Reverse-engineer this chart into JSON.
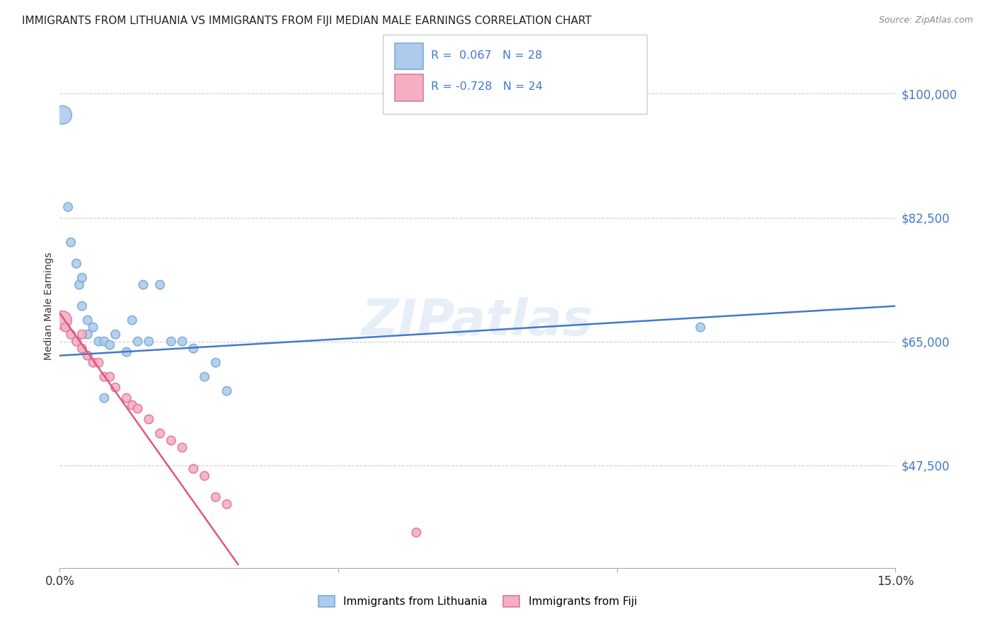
{
  "title": "IMMIGRANTS FROM LITHUANIA VS IMMIGRANTS FROM FIJI MEDIAN MALE EARNINGS CORRELATION CHART",
  "source": "Source: ZipAtlas.com",
  "ylabel": "Median Male Earnings",
  "xlim": [
    0.0,
    0.15
  ],
  "ylim": [
    33000,
    107000
  ],
  "yticks": [
    47500,
    65000,
    82500,
    100000
  ],
  "xticks": [
    0.0,
    0.05,
    0.1,
    0.15
  ],
  "xtick_labels": [
    "0.0%",
    "",
    "",
    "15.0%"
  ],
  "ytick_labels": [
    "$47,500",
    "$65,000",
    "$82,500",
    "$100,000"
  ],
  "watermark": "ZIPatlas",
  "lithuania_color": "#aecbee",
  "fiji_color": "#f4afc3",
  "lithuania_edge": "#7aaad4",
  "fiji_edge": "#e07898",
  "blue_line_color": "#4477cc",
  "pink_line_color": "#e05878",
  "legend_label_blue": "Immigrants from Lithuania",
  "legend_label_pink": "Immigrants from Fiji",
  "lithuania_x": [
    0.0015,
    0.002,
    0.003,
    0.0035,
    0.004,
    0.004,
    0.005,
    0.005,
    0.006,
    0.007,
    0.008,
    0.009,
    0.01,
    0.012,
    0.013,
    0.014,
    0.015,
    0.016,
    0.018,
    0.02,
    0.022,
    0.024,
    0.026,
    0.028,
    0.03,
    0.0005,
    0.115,
    0.008
  ],
  "lithuania_y": [
    84000,
    79000,
    76000,
    73000,
    70000,
    74000,
    68000,
    66000,
    67000,
    65000,
    65000,
    64500,
    66000,
    63500,
    68000,
    65000,
    73000,
    65000,
    73000,
    65000,
    65000,
    64000,
    60000,
    62000,
    58000,
    97000,
    67000,
    57000
  ],
  "lithuania_size": [
    80,
    80,
    80,
    80,
    80,
    80,
    80,
    80,
    80,
    80,
    80,
    80,
    80,
    80,
    80,
    80,
    80,
    80,
    80,
    80,
    80,
    80,
    80,
    80,
    80,
    350,
    80,
    80
  ],
  "fiji_x": [
    0.0005,
    0.001,
    0.002,
    0.003,
    0.004,
    0.004,
    0.005,
    0.006,
    0.007,
    0.008,
    0.009,
    0.01,
    0.012,
    0.013,
    0.014,
    0.016,
    0.018,
    0.02,
    0.022,
    0.024,
    0.026,
    0.028,
    0.03,
    0.064
  ],
  "fiji_y": [
    68000,
    67000,
    66000,
    65000,
    66000,
    64000,
    63000,
    62000,
    62000,
    60000,
    60000,
    58500,
    57000,
    56000,
    55500,
    54000,
    52000,
    51000,
    50000,
    47000,
    46000,
    43000,
    42000,
    38000
  ],
  "fiji_size": [
    350,
    80,
    80,
    80,
    80,
    80,
    80,
    80,
    80,
    80,
    80,
    80,
    80,
    80,
    80,
    80,
    80,
    80,
    80,
    80,
    80,
    80,
    80,
    80
  ],
  "blue_line_x": [
    0.0,
    0.15
  ],
  "blue_line_y": [
    63000,
    70000
  ],
  "pink_line_x": [
    0.0,
    0.032
  ],
  "pink_line_y": [
    69000,
    33500
  ]
}
